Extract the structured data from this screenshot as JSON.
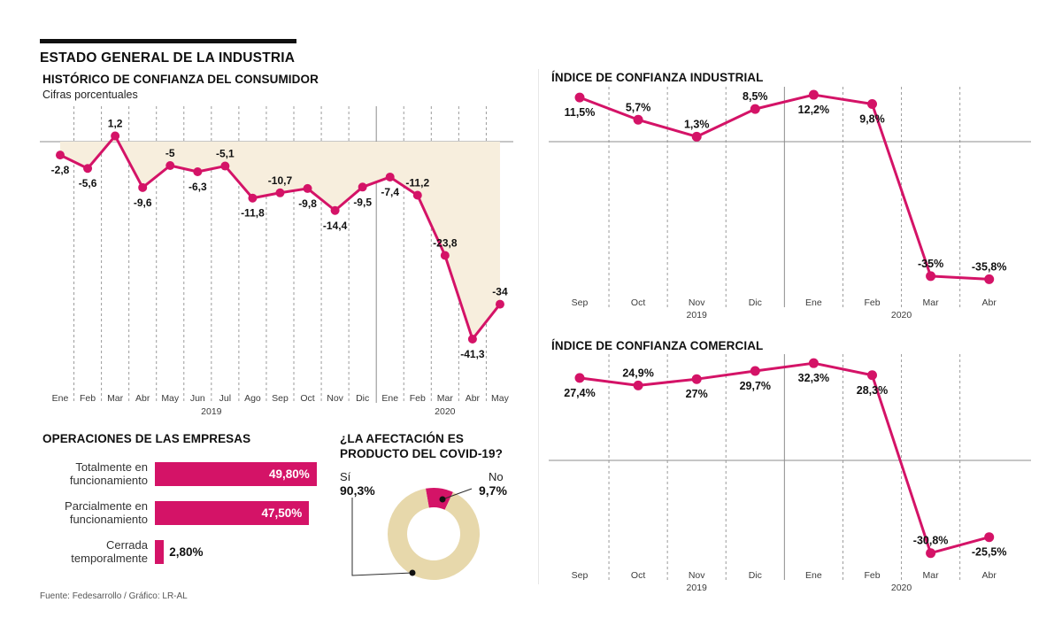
{
  "header": {
    "title": "ESTADO GENERAL DE LA INDUSTRIA"
  },
  "footer": {
    "source": "Fuente: Fedesarrollo  / Gráfico: LR-AL"
  },
  "colors": {
    "accent": "#d41367",
    "area_fill": "#f7eedd",
    "donut_beige": "#e7d8ab",
    "grid": "#9b9b9b",
    "axis": "#8d8d8d",
    "text": "#111111"
  },
  "chart_data": [
    {
      "id": "consumer",
      "type": "line",
      "title": "HISTÓRICO DE CONFIANZA DEL CONSUMIDOR",
      "subtitle": "Cifras porcentuales",
      "categories": [
        "Ene",
        "Feb",
        "Mar",
        "Abr",
        "May",
        "Jun",
        "Jul",
        "Ago",
        "Sep",
        "Oct",
        "Nov",
        "Dic",
        "Ene",
        "Feb",
        "Mar",
        "Abr",
        "May"
      ],
      "values": [
        -2.8,
        -5.6,
        1.2,
        -9.6,
        -5,
        -6.3,
        -5.1,
        -11.8,
        -10.7,
        -9.8,
        -14.4,
        -9.5,
        -7.4,
        -11.2,
        -23.8,
        -41.3,
        -34
      ],
      "labels": [
        "-2,8",
        "-5,6",
        "1,2",
        "-9,6",
        "-5",
        "-6,3",
        "-5,1",
        "-11,8",
        "-10,7",
        "-9,8",
        "-14,4",
        "-9,5",
        "-7,4",
        "-11,2",
        "-23,8",
        "-41,3",
        "-34"
      ],
      "label_side": [
        "below",
        "below",
        "above",
        "below",
        "above",
        "below",
        "above",
        "below",
        "above",
        "below",
        "below",
        "below",
        "below",
        "above",
        "above",
        "below",
        "above"
      ],
      "years": [
        "2019",
        "2020"
      ],
      "year_break_index": 12,
      "year_label_index": [
        5.5,
        14
      ],
      "ylim": [
        -45,
        6
      ],
      "area": true,
      "grid": "dashed-vertical"
    },
    {
      "id": "industrial",
      "type": "line",
      "title": "ÍNDICE DE CONFIANZA INDUSTRIAL",
      "categories": [
        "Sep",
        "Oct",
        "Nov",
        "Dic",
        "Ene",
        "Feb",
        "Mar",
        "Abr"
      ],
      "values": [
        11.5,
        5.7,
        1.3,
        8.5,
        12.2,
        9.8,
        -35,
        -35.8
      ],
      "labels": [
        "11,5%",
        "5,7%",
        "1,3%",
        "8,5%",
        "12,2%",
        "9,8%",
        "-35%",
        "-35,8%"
      ],
      "label_side": [
        "below",
        "above",
        "above",
        "above",
        "below",
        "below",
        "above",
        "above"
      ],
      "years": [
        "2019",
        "2020"
      ],
      "year_break_index": 4,
      "year_label_index": [
        2,
        5.5
      ],
      "ylim": [
        -40,
        16
      ],
      "area": false,
      "grid": "dashed-vertical"
    },
    {
      "id": "comercial",
      "type": "line",
      "title": "ÍNDICE DE CONFIANZA COMERCIAL",
      "categories": [
        "Sep",
        "Oct",
        "Nov",
        "Dic",
        "Ene",
        "Feb",
        "Mar",
        "Abr"
      ],
      "values": [
        27.4,
        24.9,
        27,
        29.7,
        32.3,
        28.3,
        -30.8,
        -25.5
      ],
      "labels": [
        "27,4%",
        "24,9%",
        "27%",
        "29,7%",
        "32,3%",
        "28,3%",
        "-30,8%",
        "-25,5%"
      ],
      "label_side": [
        "below",
        "above",
        "below",
        "below",
        "below",
        "below",
        "above",
        "below"
      ],
      "years": [
        "2019",
        "2020"
      ],
      "year_break_index": 4,
      "year_label_index": [
        2,
        5.5
      ],
      "ylim": [
        -36,
        36
      ],
      "area": false,
      "grid": "dashed-vertical"
    },
    {
      "id": "operations",
      "type": "bar",
      "title": "OPERACIONES DE LAS EMPRESAS",
      "categories": [
        "Totalmente en\nfuncionamiento",
        "Parcialmente en\nfuncionamiento",
        "Cerrada\ntemporalmente"
      ],
      "values": [
        49.8,
        47.5,
        2.8
      ],
      "labels": [
        "49,80%",
        "47,50%",
        "2,80%"
      ],
      "xlim": [
        0,
        100
      ]
    },
    {
      "id": "covid",
      "type": "pie",
      "title": "¿LA AFECTACIÓN ES PRODUCTO DEL COVID-19?",
      "donut": true,
      "slices": [
        {
          "label": "Sí",
          "value": 90.3,
          "text": "90,3%"
        },
        {
          "label": "No",
          "value": 9.7,
          "text": "9,7%"
        }
      ]
    }
  ]
}
